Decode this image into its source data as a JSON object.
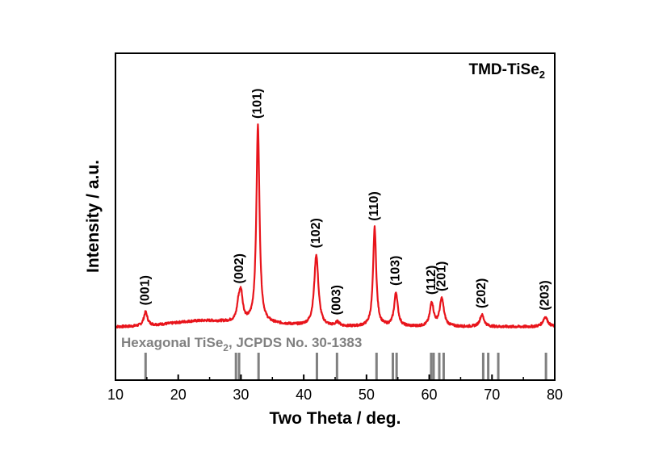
{
  "chart_data": {
    "type": "line",
    "title": "",
    "sample_label": {
      "main": "TMD-TiSe",
      "sub": "2"
    },
    "xlabel": "Two Theta / deg.",
    "ylabel": "Intensity / a.u.",
    "xlim": [
      10,
      80
    ],
    "x_ticks": [
      10,
      20,
      30,
      40,
      50,
      60,
      70,
      80
    ],
    "y_ticks": [],
    "grid": false,
    "colors": {
      "pattern": "#e8141b",
      "reference": "#808080"
    },
    "pattern_peaks": [
      {
        "two_theta": 14.8,
        "intensity": 0.07,
        "width": 0.35
      },
      {
        "two_theta": 29.6,
        "intensity": 0.07,
        "width": 0.3
      },
      {
        "two_theta": 30.0,
        "intensity": 0.14,
        "width": 0.35
      },
      {
        "two_theta": 32.7,
        "intensity": 1.0,
        "width": 0.3
      },
      {
        "two_theta": 42.0,
        "intensity": 0.36,
        "width": 0.4
      },
      {
        "two_theta": 45.4,
        "intensity": 0.02,
        "width": 0.4
      },
      {
        "two_theta": 51.3,
        "intensity": 0.5,
        "width": 0.3
      },
      {
        "two_theta": 54.7,
        "intensity": 0.17,
        "width": 0.35
      },
      {
        "two_theta": 60.4,
        "intensity": 0.12,
        "width": 0.35
      },
      {
        "two_theta": 62.0,
        "intensity": 0.14,
        "width": 0.4
      },
      {
        "two_theta": 68.4,
        "intensity": 0.06,
        "width": 0.4
      },
      {
        "two_theta": 78.5,
        "intensity": 0.05,
        "width": 0.45
      }
    ],
    "peak_labels": [
      {
        "hkl": "(001)",
        "two_theta": 14.8
      },
      {
        "hkl": "(002)",
        "two_theta": 29.8
      },
      {
        "hkl": "(101)",
        "two_theta": 32.7
      },
      {
        "hkl": "(102)",
        "two_theta": 42.0
      },
      {
        "hkl": "(003)",
        "two_theta": 45.3
      },
      {
        "hkl": "(110)",
        "two_theta": 51.3
      },
      {
        "hkl": "(103)",
        "two_theta": 54.7
      },
      {
        "hkl": "(112)",
        "two_theta": 60.4
      },
      {
        "hkl": "(201)",
        "two_theta": 62.0
      },
      {
        "hkl": "(202)",
        "two_theta": 68.4
      },
      {
        "hkl": "(203)",
        "two_theta": 78.5
      }
    ],
    "reference": {
      "label": {
        "prefix": "Hexagonal TiSe",
        "sub": "2",
        "suffix": ", JCPDS No. 30-1383"
      },
      "lines": [
        14.8,
        29.2,
        29.7,
        32.8,
        42.1,
        45.3,
        51.6,
        54.2,
        54.8,
        60.3,
        60.7,
        61.6,
        62.3,
        68.6,
        69.4,
        71.0,
        78.6
      ]
    }
  }
}
